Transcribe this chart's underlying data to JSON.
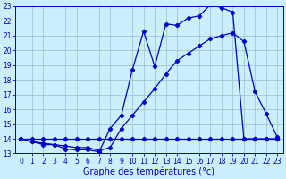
{
  "background_color": "#cceeff",
  "grid_color": "#99cccc",
  "line_color": "#0000cc",
  "xlabel": "Graphe des températures (°c)",
  "xlabel_fontsize": 7,
  "tick_fontsize": 5.5,
  "xlim": [
    -0.5,
    23.5
  ],
  "ylim": [
    13,
    23
  ],
  "yticks": [
    13,
    14,
    15,
    16,
    17,
    18,
    19,
    20,
    21,
    22,
    23
  ],
  "xticks": [
    0,
    1,
    2,
    3,
    4,
    5,
    6,
    7,
    8,
    9,
    10,
    11,
    12,
    13,
    14,
    15,
    16,
    17,
    18,
    19,
    20,
    21,
    22,
    23
  ],
  "line1_x": [
    0,
    1,
    2,
    3,
    4,
    5,
    6,
    7,
    8,
    9,
    10,
    11,
    12,
    13,
    14,
    15,
    16,
    17,
    18,
    19,
    20,
    21,
    22,
    23
  ],
  "line1_y": [
    14.0,
    13.8,
    13.7,
    13.6,
    13.3,
    13.25,
    13.25,
    13.1,
    14.7,
    15.6,
    18.7,
    21.3,
    18.9,
    21.8,
    21.7,
    22.2,
    22.35,
    23.1,
    22.9,
    22.6,
    14.0,
    14.0,
    14.0,
    14.0
  ],
  "line2_x": [
    0,
    1,
    2,
    3,
    4,
    5,
    6,
    7,
    8,
    9,
    10,
    11,
    12,
    13,
    14,
    15,
    16,
    17,
    18,
    19,
    20,
    21,
    22,
    23
  ],
  "line2_y": [
    14.0,
    13.8,
    13.6,
    13.6,
    13.5,
    13.4,
    13.4,
    13.2,
    13.4,
    14.7,
    15.6,
    16.5,
    17.4,
    18.4,
    19.3,
    19.8,
    20.3,
    20.8,
    21.0,
    21.2,
    20.6,
    17.2,
    15.7,
    14.1
  ],
  "line3_x": [
    0,
    1,
    2,
    3,
    4,
    5,
    6,
    7,
    8,
    9,
    10,
    11,
    12,
    13,
    14,
    15,
    16,
    17,
    18,
    19,
    20,
    21,
    22,
    23
  ],
  "line3_y": [
    14.0,
    14.0,
    14.0,
    14.0,
    14.0,
    14.0,
    14.0,
    14.0,
    14.0,
    14.0,
    14.0,
    14.0,
    14.0,
    14.0,
    14.0,
    14.0,
    14.0,
    14.0,
    14.0,
    14.0,
    14.0,
    14.0,
    14.0,
    14.0
  ]
}
